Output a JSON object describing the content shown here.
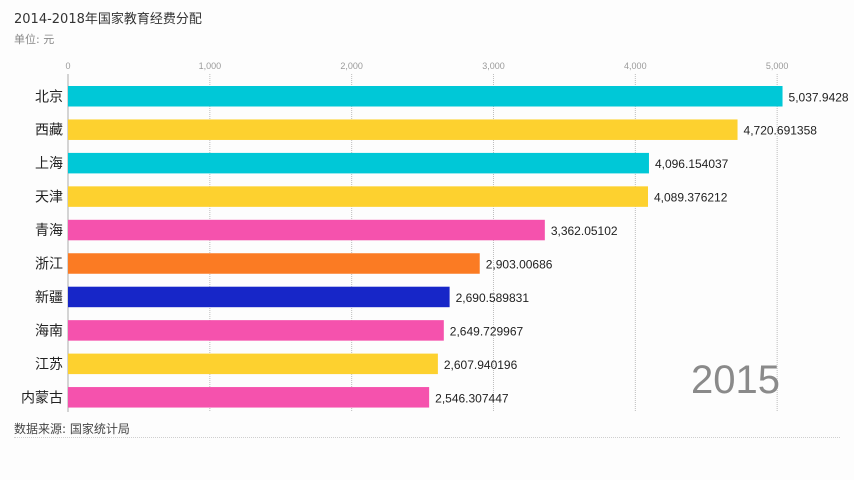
{
  "title": "2014-2018年国家教育经费分配",
  "unit_label": "单位: 元",
  "source": "数据来源: 国家统计局",
  "year_label": "2015",
  "chart_data": {
    "type": "bar",
    "orientation": "horizontal",
    "title": "2014-2018年国家教育经费分配",
    "unit": "元",
    "xlim": [
      0,
      5400
    ],
    "x_ticks": [
      0,
      1000,
      2000,
      3000,
      4000,
      5000
    ],
    "x_tick_labels": [
      "0",
      "1,000",
      "2,000",
      "3,000",
      "4,000",
      "5,000"
    ],
    "grid": true,
    "categories": [
      "北京",
      "西藏",
      "上海",
      "天津",
      "青海",
      "浙江",
      "新疆",
      "海南",
      "江苏",
      "内蒙古"
    ],
    "values": [
      5037.9428,
      4720.691358,
      4096.154037,
      4089.376212,
      3362.05102,
      2903.00686,
      2690.589831,
      2649.729967,
      2607.940196,
      2546.307447
    ],
    "value_labels": [
      "5,037.9428",
      "4,720.691358",
      "4,096.154037",
      "4,089.376212",
      "3,362.05102",
      "2,903.00686",
      "2,690.589831",
      "2,649.729967",
      "2,607.940196",
      "2,546.307447"
    ],
    "colors": [
      "#00c8d7",
      "#fdd12f",
      "#00c8d7",
      "#fdd12f",
      "#f552ad",
      "#fb7b23",
      "#1726c8",
      "#f552ad",
      "#fdd12f",
      "#f552ad"
    ]
  }
}
